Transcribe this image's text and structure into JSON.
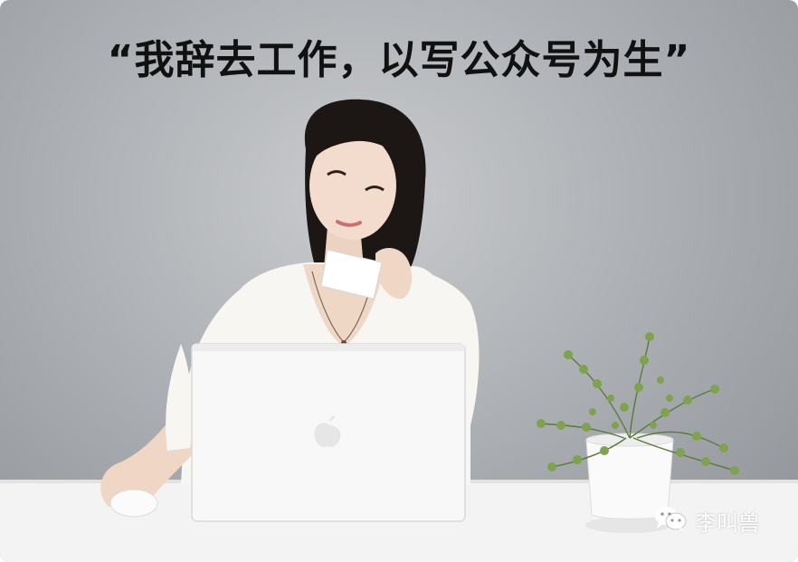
{
  "headline": "“我辞去工作，以写公众号为生”",
  "watermark": {
    "icon": "wechat-icon",
    "account_name": "李叫兽"
  },
  "colors": {
    "background": "#a9acb0",
    "desk": "#f2f2f2",
    "headline_text": "#111111",
    "watermark_text": "#ffffff"
  }
}
